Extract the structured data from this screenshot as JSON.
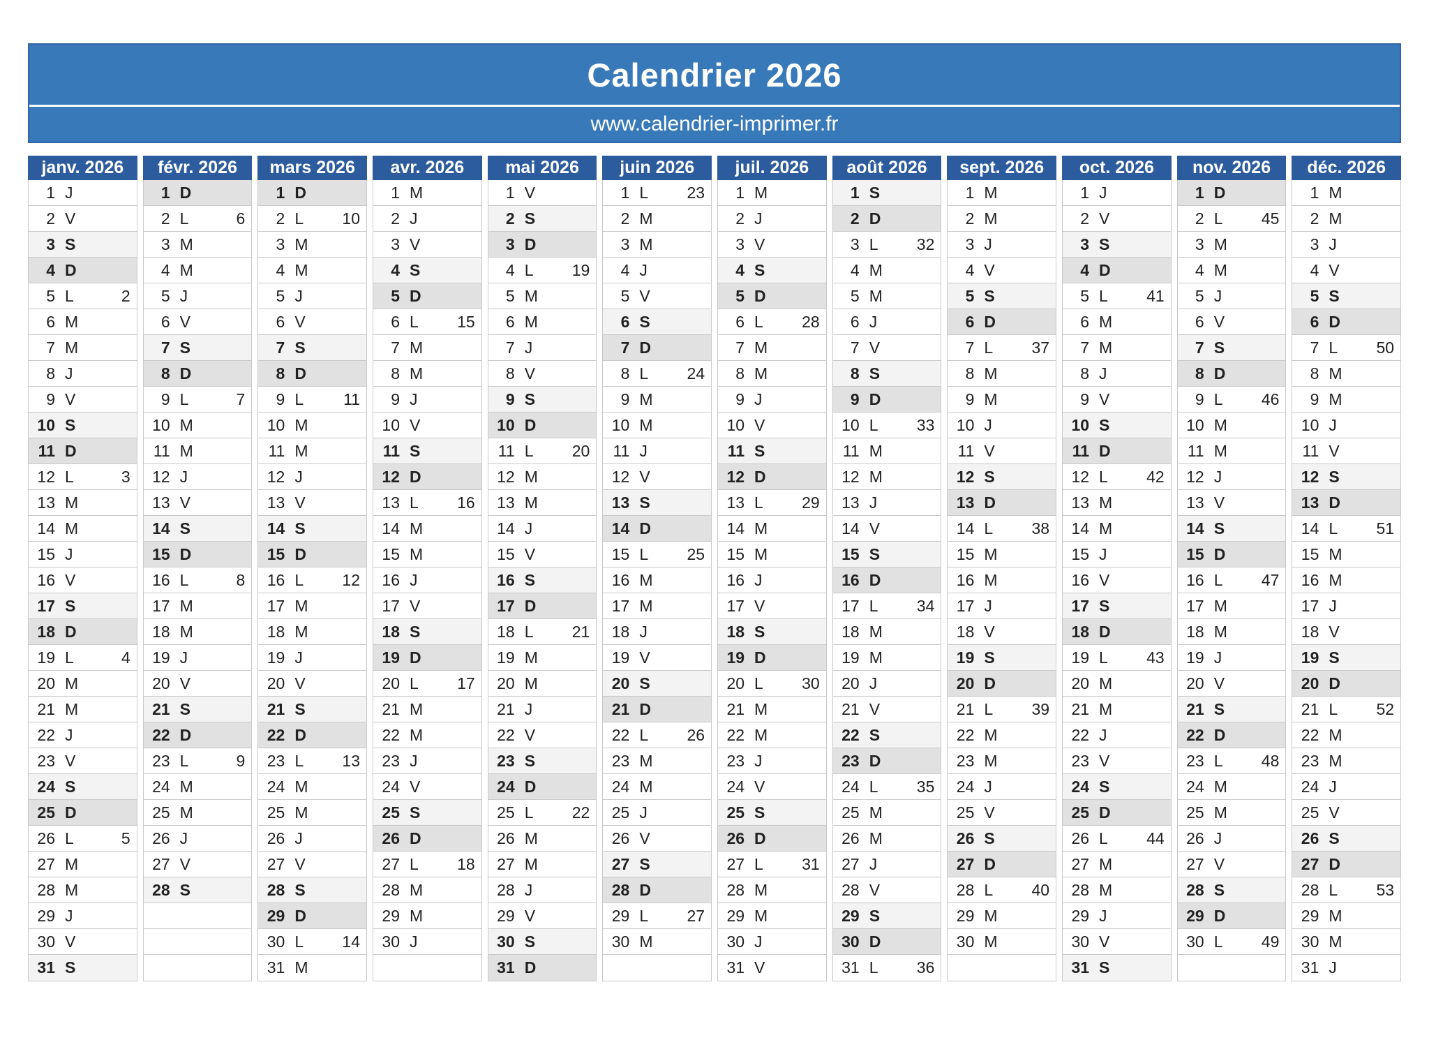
{
  "banner": {
    "title": "Calendrier 2026",
    "url": "www.calendrier-imprimer.fr"
  },
  "colors": {
    "banner_blue": "#3779b9",
    "banner_border": "#2f65a2",
    "month_header_blue": "#2d5c9e",
    "saturday_bg": "#f3f3f3",
    "sunday_bg": "#e1e1e1",
    "row_border": "#c9c9c9",
    "text": "#222222"
  },
  "max_rows": 31,
  "months": [
    {
      "name": "janv. 2026",
      "days": [
        [
          1,
          "J"
        ],
        [
          2,
          "V"
        ],
        [
          3,
          "S"
        ],
        [
          4,
          "D"
        ],
        [
          5,
          "L",
          2
        ],
        [
          6,
          "M"
        ],
        [
          7,
          "M"
        ],
        [
          8,
          "J"
        ],
        [
          9,
          "V"
        ],
        [
          10,
          "S"
        ],
        [
          11,
          "D"
        ],
        [
          12,
          "L",
          3
        ],
        [
          13,
          "M"
        ],
        [
          14,
          "M"
        ],
        [
          15,
          "J"
        ],
        [
          16,
          "V"
        ],
        [
          17,
          "S"
        ],
        [
          18,
          "D"
        ],
        [
          19,
          "L",
          4
        ],
        [
          20,
          "M"
        ],
        [
          21,
          "M"
        ],
        [
          22,
          "J"
        ],
        [
          23,
          "V"
        ],
        [
          24,
          "S"
        ],
        [
          25,
          "D"
        ],
        [
          26,
          "L",
          5
        ],
        [
          27,
          "M"
        ],
        [
          28,
          "M"
        ],
        [
          29,
          "J"
        ],
        [
          30,
          "V"
        ],
        [
          31,
          "S"
        ]
      ]
    },
    {
      "name": "févr. 2026",
      "days": [
        [
          1,
          "D"
        ],
        [
          2,
          "L",
          6
        ],
        [
          3,
          "M"
        ],
        [
          4,
          "M"
        ],
        [
          5,
          "J"
        ],
        [
          6,
          "V"
        ],
        [
          7,
          "S"
        ],
        [
          8,
          "D"
        ],
        [
          9,
          "L",
          7
        ],
        [
          10,
          "M"
        ],
        [
          11,
          "M"
        ],
        [
          12,
          "J"
        ],
        [
          13,
          "V"
        ],
        [
          14,
          "S"
        ],
        [
          15,
          "D"
        ],
        [
          16,
          "L",
          8
        ],
        [
          17,
          "M"
        ],
        [
          18,
          "M"
        ],
        [
          19,
          "J"
        ],
        [
          20,
          "V"
        ],
        [
          21,
          "S"
        ],
        [
          22,
          "D"
        ],
        [
          23,
          "L",
          9
        ],
        [
          24,
          "M"
        ],
        [
          25,
          "M"
        ],
        [
          26,
          "J"
        ],
        [
          27,
          "V"
        ],
        [
          28,
          "S"
        ]
      ]
    },
    {
      "name": "mars 2026",
      "days": [
        [
          1,
          "D"
        ],
        [
          2,
          "L",
          10
        ],
        [
          3,
          "M"
        ],
        [
          4,
          "M"
        ],
        [
          5,
          "J"
        ],
        [
          6,
          "V"
        ],
        [
          7,
          "S"
        ],
        [
          8,
          "D"
        ],
        [
          9,
          "L",
          11
        ],
        [
          10,
          "M"
        ],
        [
          11,
          "M"
        ],
        [
          12,
          "J"
        ],
        [
          13,
          "V"
        ],
        [
          14,
          "S"
        ],
        [
          15,
          "D"
        ],
        [
          16,
          "L",
          12
        ],
        [
          17,
          "M"
        ],
        [
          18,
          "M"
        ],
        [
          19,
          "J"
        ],
        [
          20,
          "V"
        ],
        [
          21,
          "S"
        ],
        [
          22,
          "D"
        ],
        [
          23,
          "L",
          13
        ],
        [
          24,
          "M"
        ],
        [
          25,
          "M"
        ],
        [
          26,
          "J"
        ],
        [
          27,
          "V"
        ],
        [
          28,
          "S"
        ],
        [
          29,
          "D"
        ],
        [
          30,
          "L",
          14
        ],
        [
          31,
          "M"
        ]
      ]
    },
    {
      "name": "avr. 2026",
      "days": [
        [
          1,
          "M"
        ],
        [
          2,
          "J"
        ],
        [
          3,
          "V"
        ],
        [
          4,
          "S"
        ],
        [
          5,
          "D"
        ],
        [
          6,
          "L",
          15
        ],
        [
          7,
          "M"
        ],
        [
          8,
          "M"
        ],
        [
          9,
          "J"
        ],
        [
          10,
          "V"
        ],
        [
          11,
          "S"
        ],
        [
          12,
          "D"
        ],
        [
          13,
          "L",
          16
        ],
        [
          14,
          "M"
        ],
        [
          15,
          "M"
        ],
        [
          16,
          "J"
        ],
        [
          17,
          "V"
        ],
        [
          18,
          "S"
        ],
        [
          19,
          "D"
        ],
        [
          20,
          "L",
          17
        ],
        [
          21,
          "M"
        ],
        [
          22,
          "M"
        ],
        [
          23,
          "J"
        ],
        [
          24,
          "V"
        ],
        [
          25,
          "S"
        ],
        [
          26,
          "D"
        ],
        [
          27,
          "L",
          18
        ],
        [
          28,
          "M"
        ],
        [
          29,
          "M"
        ],
        [
          30,
          "J"
        ]
      ]
    },
    {
      "name": "mai 2026",
      "days": [
        [
          1,
          "V"
        ],
        [
          2,
          "S"
        ],
        [
          3,
          "D"
        ],
        [
          4,
          "L",
          19
        ],
        [
          5,
          "M"
        ],
        [
          6,
          "M"
        ],
        [
          7,
          "J"
        ],
        [
          8,
          "V"
        ],
        [
          9,
          "S"
        ],
        [
          10,
          "D"
        ],
        [
          11,
          "L",
          20
        ],
        [
          12,
          "M"
        ],
        [
          13,
          "M"
        ],
        [
          14,
          "J"
        ],
        [
          15,
          "V"
        ],
        [
          16,
          "S"
        ],
        [
          17,
          "D"
        ],
        [
          18,
          "L",
          21
        ],
        [
          19,
          "M"
        ],
        [
          20,
          "M"
        ],
        [
          21,
          "J"
        ],
        [
          22,
          "V"
        ],
        [
          23,
          "S"
        ],
        [
          24,
          "D"
        ],
        [
          25,
          "L",
          22
        ],
        [
          26,
          "M"
        ],
        [
          27,
          "M"
        ],
        [
          28,
          "J"
        ],
        [
          29,
          "V"
        ],
        [
          30,
          "S"
        ],
        [
          31,
          "D"
        ]
      ]
    },
    {
      "name": "juin 2026",
      "days": [
        [
          1,
          "L",
          23
        ],
        [
          2,
          "M"
        ],
        [
          3,
          "M"
        ],
        [
          4,
          "J"
        ],
        [
          5,
          "V"
        ],
        [
          6,
          "S"
        ],
        [
          7,
          "D"
        ],
        [
          8,
          "L",
          24
        ],
        [
          9,
          "M"
        ],
        [
          10,
          "M"
        ],
        [
          11,
          "J"
        ],
        [
          12,
          "V"
        ],
        [
          13,
          "S"
        ],
        [
          14,
          "D"
        ],
        [
          15,
          "L",
          25
        ],
        [
          16,
          "M"
        ],
        [
          17,
          "M"
        ],
        [
          18,
          "J"
        ],
        [
          19,
          "V"
        ],
        [
          20,
          "S"
        ],
        [
          21,
          "D"
        ],
        [
          22,
          "L",
          26
        ],
        [
          23,
          "M"
        ],
        [
          24,
          "M"
        ],
        [
          25,
          "J"
        ],
        [
          26,
          "V"
        ],
        [
          27,
          "S"
        ],
        [
          28,
          "D"
        ],
        [
          29,
          "L",
          27
        ],
        [
          30,
          "M"
        ]
      ]
    },
    {
      "name": "juil. 2026",
      "days": [
        [
          1,
          "M"
        ],
        [
          2,
          "J"
        ],
        [
          3,
          "V"
        ],
        [
          4,
          "S"
        ],
        [
          5,
          "D"
        ],
        [
          6,
          "L",
          28
        ],
        [
          7,
          "M"
        ],
        [
          8,
          "M"
        ],
        [
          9,
          "J"
        ],
        [
          10,
          "V"
        ],
        [
          11,
          "S"
        ],
        [
          12,
          "D"
        ],
        [
          13,
          "L",
          29
        ],
        [
          14,
          "M"
        ],
        [
          15,
          "M"
        ],
        [
          16,
          "J"
        ],
        [
          17,
          "V"
        ],
        [
          18,
          "S"
        ],
        [
          19,
          "D"
        ],
        [
          20,
          "L",
          30
        ],
        [
          21,
          "M"
        ],
        [
          22,
          "M"
        ],
        [
          23,
          "J"
        ],
        [
          24,
          "V"
        ],
        [
          25,
          "S"
        ],
        [
          26,
          "D"
        ],
        [
          27,
          "L",
          31
        ],
        [
          28,
          "M"
        ],
        [
          29,
          "M"
        ],
        [
          30,
          "J"
        ],
        [
          31,
          "V"
        ]
      ]
    },
    {
      "name": "août 2026",
      "days": [
        [
          1,
          "S"
        ],
        [
          2,
          "D"
        ],
        [
          3,
          "L",
          32
        ],
        [
          4,
          "M"
        ],
        [
          5,
          "M"
        ],
        [
          6,
          "J"
        ],
        [
          7,
          "V"
        ],
        [
          8,
          "S"
        ],
        [
          9,
          "D"
        ],
        [
          10,
          "L",
          33
        ],
        [
          11,
          "M"
        ],
        [
          12,
          "M"
        ],
        [
          13,
          "J"
        ],
        [
          14,
          "V"
        ],
        [
          15,
          "S"
        ],
        [
          16,
          "D"
        ],
        [
          17,
          "L",
          34
        ],
        [
          18,
          "M"
        ],
        [
          19,
          "M"
        ],
        [
          20,
          "J"
        ],
        [
          21,
          "V"
        ],
        [
          22,
          "S"
        ],
        [
          23,
          "D"
        ],
        [
          24,
          "L",
          35
        ],
        [
          25,
          "M"
        ],
        [
          26,
          "M"
        ],
        [
          27,
          "J"
        ],
        [
          28,
          "V"
        ],
        [
          29,
          "S"
        ],
        [
          30,
          "D"
        ],
        [
          31,
          "L",
          36
        ]
      ]
    },
    {
      "name": "sept. 2026",
      "days": [
        [
          1,
          "M"
        ],
        [
          2,
          "M"
        ],
        [
          3,
          "J"
        ],
        [
          4,
          "V"
        ],
        [
          5,
          "S"
        ],
        [
          6,
          "D"
        ],
        [
          7,
          "L",
          37
        ],
        [
          8,
          "M"
        ],
        [
          9,
          "M"
        ],
        [
          10,
          "J"
        ],
        [
          11,
          "V"
        ],
        [
          12,
          "S"
        ],
        [
          13,
          "D"
        ],
        [
          14,
          "L",
          38
        ],
        [
          15,
          "M"
        ],
        [
          16,
          "M"
        ],
        [
          17,
          "J"
        ],
        [
          18,
          "V"
        ],
        [
          19,
          "S"
        ],
        [
          20,
          "D"
        ],
        [
          21,
          "L",
          39
        ],
        [
          22,
          "M"
        ],
        [
          23,
          "M"
        ],
        [
          24,
          "J"
        ],
        [
          25,
          "V"
        ],
        [
          26,
          "S"
        ],
        [
          27,
          "D"
        ],
        [
          28,
          "L",
          40
        ],
        [
          29,
          "M"
        ],
        [
          30,
          "M"
        ]
      ]
    },
    {
      "name": "oct. 2026",
      "days": [
        [
          1,
          "J"
        ],
        [
          2,
          "V"
        ],
        [
          3,
          "S"
        ],
        [
          4,
          "D"
        ],
        [
          5,
          "L",
          41
        ],
        [
          6,
          "M"
        ],
        [
          7,
          "M"
        ],
        [
          8,
          "J"
        ],
        [
          9,
          "V"
        ],
        [
          10,
          "S"
        ],
        [
          11,
          "D"
        ],
        [
          12,
          "L",
          42
        ],
        [
          13,
          "M"
        ],
        [
          14,
          "M"
        ],
        [
          15,
          "J"
        ],
        [
          16,
          "V"
        ],
        [
          17,
          "S"
        ],
        [
          18,
          "D"
        ],
        [
          19,
          "L",
          43
        ],
        [
          20,
          "M"
        ],
        [
          21,
          "M"
        ],
        [
          22,
          "J"
        ],
        [
          23,
          "V"
        ],
        [
          24,
          "S"
        ],
        [
          25,
          "D"
        ],
        [
          26,
          "L",
          44
        ],
        [
          27,
          "M"
        ],
        [
          28,
          "M"
        ],
        [
          29,
          "J"
        ],
        [
          30,
          "V"
        ],
        [
          31,
          "S"
        ]
      ]
    },
    {
      "name": "nov. 2026",
      "days": [
        [
          1,
          "D"
        ],
        [
          2,
          "L",
          45
        ],
        [
          3,
          "M"
        ],
        [
          4,
          "M"
        ],
        [
          5,
          "J"
        ],
        [
          6,
          "V"
        ],
        [
          7,
          "S"
        ],
        [
          8,
          "D"
        ],
        [
          9,
          "L",
          46
        ],
        [
          10,
          "M"
        ],
        [
          11,
          "M"
        ],
        [
          12,
          "J"
        ],
        [
          13,
          "V"
        ],
        [
          14,
          "S"
        ],
        [
          15,
          "D"
        ],
        [
          16,
          "L",
          47
        ],
        [
          17,
          "M"
        ],
        [
          18,
          "M"
        ],
        [
          19,
          "J"
        ],
        [
          20,
          "V"
        ],
        [
          21,
          "S"
        ],
        [
          22,
          "D"
        ],
        [
          23,
          "L",
          48
        ],
        [
          24,
          "M"
        ],
        [
          25,
          "M"
        ],
        [
          26,
          "J"
        ],
        [
          27,
          "V"
        ],
        [
          28,
          "S"
        ],
        [
          29,
          "D"
        ],
        [
          30,
          "L",
          49
        ]
      ]
    },
    {
      "name": "déc. 2026",
      "days": [
        [
          1,
          "M"
        ],
        [
          2,
          "M"
        ],
        [
          3,
          "J"
        ],
        [
          4,
          "V"
        ],
        [
          5,
          "S"
        ],
        [
          6,
          "D"
        ],
        [
          7,
          "L",
          50
        ],
        [
          8,
          "M"
        ],
        [
          9,
          "M"
        ],
        [
          10,
          "J"
        ],
        [
          11,
          "V"
        ],
        [
          12,
          "S"
        ],
        [
          13,
          "D"
        ],
        [
          14,
          "L",
          51
        ],
        [
          15,
          "M"
        ],
        [
          16,
          "M"
        ],
        [
          17,
          "J"
        ],
        [
          18,
          "V"
        ],
        [
          19,
          "S"
        ],
        [
          20,
          "D"
        ],
        [
          21,
          "L",
          52
        ],
        [
          22,
          "M"
        ],
        [
          23,
          "M"
        ],
        [
          24,
          "J"
        ],
        [
          25,
          "V"
        ],
        [
          26,
          "S"
        ],
        [
          27,
          "D"
        ],
        [
          28,
          "L",
          53
        ],
        [
          29,
          "M"
        ],
        [
          30,
          "M"
        ],
        [
          31,
          "J"
        ]
      ]
    }
  ]
}
